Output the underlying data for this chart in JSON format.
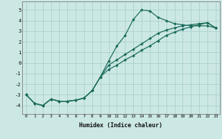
{
  "xlabel": "Humidex (Indice chaleur)",
  "background_color": "#cce8e5",
  "grid_color": "#aacfcc",
  "line_color": "#1a6b5a",
  "x_values": [
    0,
    1,
    2,
    3,
    4,
    5,
    6,
    7,
    8,
    9,
    10,
    11,
    12,
    13,
    14,
    15,
    16,
    17,
    18,
    19,
    20,
    21,
    22,
    23
  ],
  "line1_y": [
    -3.0,
    -3.8,
    -4.0,
    -3.4,
    -3.6,
    -3.6,
    -3.5,
    -3.3,
    -2.6,
    -1.3,
    0.2,
    1.6,
    2.6,
    4.1,
    5.0,
    4.9,
    4.3,
    4.0,
    3.7,
    3.6,
    3.5,
    3.5,
    3.5,
    3.3
  ],
  "line2_y": [
    -3.0,
    -3.8,
    -4.0,
    -3.4,
    -3.6,
    -3.6,
    -3.5,
    -3.3,
    -2.6,
    -1.3,
    -0.2,
    0.3,
    0.8,
    1.3,
    1.8,
    2.3,
    2.8,
    3.1,
    3.3,
    3.5,
    3.6,
    3.7,
    3.8,
    3.3
  ],
  "line3_y": [
    -3.0,
    -3.8,
    -4.0,
    -3.4,
    -3.6,
    -3.6,
    -3.5,
    -3.3,
    -2.6,
    -1.3,
    -0.6,
    -0.2,
    0.3,
    0.7,
    1.2,
    1.6,
    2.1,
    2.6,
    2.9,
    3.2,
    3.4,
    3.6,
    3.8,
    3.3
  ],
  "xlim": [
    -0.5,
    23.5
  ],
  "ylim": [
    -4.8,
    5.8
  ],
  "yticks": [
    -4,
    -3,
    -2,
    -1,
    0,
    1,
    2,
    3,
    4,
    5
  ],
  "xticks": [
    0,
    1,
    2,
    3,
    4,
    5,
    6,
    7,
    8,
    9,
    10,
    11,
    12,
    13,
    14,
    15,
    16,
    17,
    18,
    19,
    20,
    21,
    22,
    23
  ]
}
